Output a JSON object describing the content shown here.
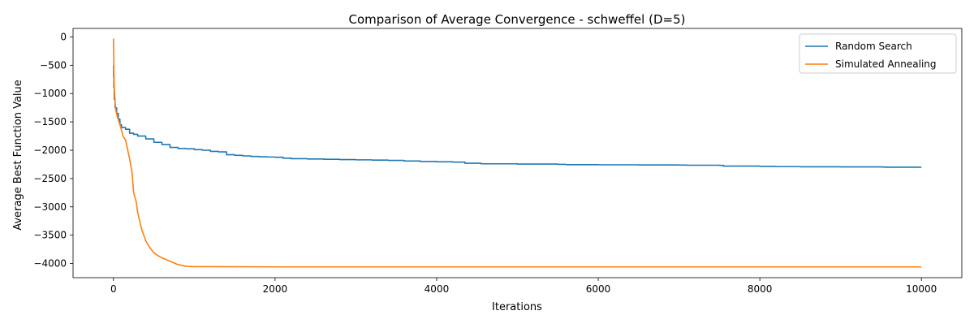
{
  "chart_data": {
    "type": "line",
    "title": "Comparison of Average Convergence - schweffel (D=5)",
    "xlabel": "Iterations",
    "ylabel": "Average Best Function Value",
    "xlim": [
      -500,
      10500
    ],
    "ylim": [
      -4250,
      150
    ],
    "x_ticks": [
      0,
      2000,
      4000,
      6000,
      8000,
      10000
    ],
    "y_ticks": [
      0,
      -500,
      -1000,
      -1500,
      -2000,
      -2500,
      -3000,
      -3500,
      -4000
    ],
    "grid": false,
    "legend_position": "top-right",
    "series": [
      {
        "name": "Random Search",
        "color": "#1f77b4",
        "x": [
          0,
          2,
          5,
          10,
          20,
          40,
          60,
          80,
          100,
          150,
          200,
          250,
          300,
          400,
          500,
          600,
          700,
          800,
          900,
          1000,
          1100,
          1200,
          1300,
          1400,
          1500,
          1600,
          1700,
          1800,
          1900,
          2000,
          2100,
          2200,
          2400,
          2600,
          2800,
          3000,
          3200,
          3400,
          3600,
          3800,
          4000,
          4200,
          4350,
          4550,
          5000,
          5500,
          5600,
          6000,
          6500,
          7000,
          7100,
          7500,
          7550,
          8000,
          8200,
          8500,
          9000,
          9500,
          9550,
          10000
        ],
        "y": [
          -500,
          -700,
          -900,
          -1100,
          -1250,
          -1350,
          -1450,
          -1550,
          -1600,
          -1630,
          -1700,
          -1720,
          -1750,
          -1800,
          -1860,
          -1900,
          -1950,
          -1970,
          -1975,
          -1990,
          -2000,
          -2020,
          -2030,
          -2080,
          -2090,
          -2100,
          -2110,
          -2115,
          -2120,
          -2125,
          -2140,
          -2150,
          -2155,
          -2160,
          -2165,
          -2170,
          -2175,
          -2180,
          -2190,
          -2200,
          -2205,
          -2210,
          -2230,
          -2240,
          -2245,
          -2250,
          -2255,
          -2258,
          -2260,
          -2262,
          -2265,
          -2268,
          -2280,
          -2285,
          -2290,
          -2292,
          -2295,
          -2297,
          -2300,
          -2300
        ]
      },
      {
        "name": "Simulated Annealing",
        "color": "#ff7f0e",
        "x": [
          0,
          3,
          6,
          10,
          20,
          30,
          50,
          80,
          100,
          120,
          150,
          170,
          200,
          230,
          250,
          280,
          300,
          350,
          400,
          450,
          500,
          550,
          600,
          650,
          700,
          800,
          900,
          1000,
          1500,
          2000,
          4000,
          6000,
          8000,
          10000
        ],
        "y": [
          -30,
          -300,
          -650,
          -900,
          -1150,
          -1300,
          -1420,
          -1550,
          -1650,
          -1760,
          -1820,
          -1950,
          -2150,
          -2400,
          -2750,
          -2900,
          -3100,
          -3400,
          -3600,
          -3720,
          -3810,
          -3860,
          -3900,
          -3930,
          -3960,
          -4020,
          -4050,
          -4055,
          -4058,
          -4060,
          -4060,
          -4060,
          -4060,
          -4060
        ]
      }
    ]
  }
}
